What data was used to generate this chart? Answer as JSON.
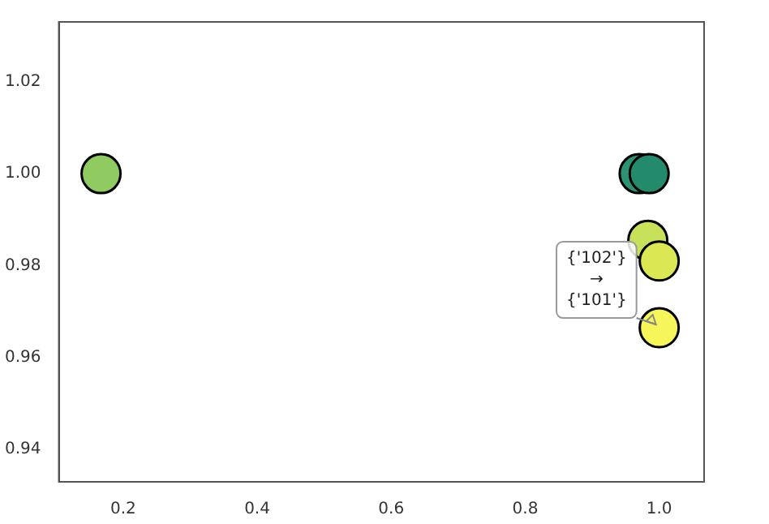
{
  "chart_data": {
    "type": "scatter",
    "marker": "circle",
    "grid": false,
    "legend": false,
    "x": [
      0.167,
      0.97,
      0.985,
      0.983,
      1.0,
      1.0
    ],
    "values": [
      1.0,
      1.0,
      1.0,
      0.9855,
      0.981,
      0.9665
    ],
    "colors": [
      "#90cb62",
      "#2c9273",
      "#238a6c",
      "#c8e15a",
      "#dbe753",
      "#f6f65a"
    ],
    "xlim": [
      0.104,
      1.067
    ],
    "xticks": [
      {
        "value": 0.2,
        "label": "0.2"
      },
      {
        "value": 0.4,
        "label": "0.4"
      },
      {
        "value": 0.6,
        "label": "0.6"
      },
      {
        "value": 0.8,
        "label": "0.8"
      },
      {
        "value": 1.0,
        "label": "1.0"
      }
    ],
    "ylim": [
      0.933,
      1.033
    ],
    "yticks": [
      {
        "value": 0.94,
        "label": "0.94"
      },
      {
        "value": 0.96,
        "label": "0.96"
      },
      {
        "value": 0.98,
        "label": "0.98"
      },
      {
        "value": 1.0,
        "label": "1.00"
      },
      {
        "value": 1.02,
        "label": "1.02"
      }
    ],
    "annotations": [
      {
        "text": "{'102'}\n→\n{'101'}",
        "x": 1.0,
        "y": 0.9665
      }
    ]
  }
}
